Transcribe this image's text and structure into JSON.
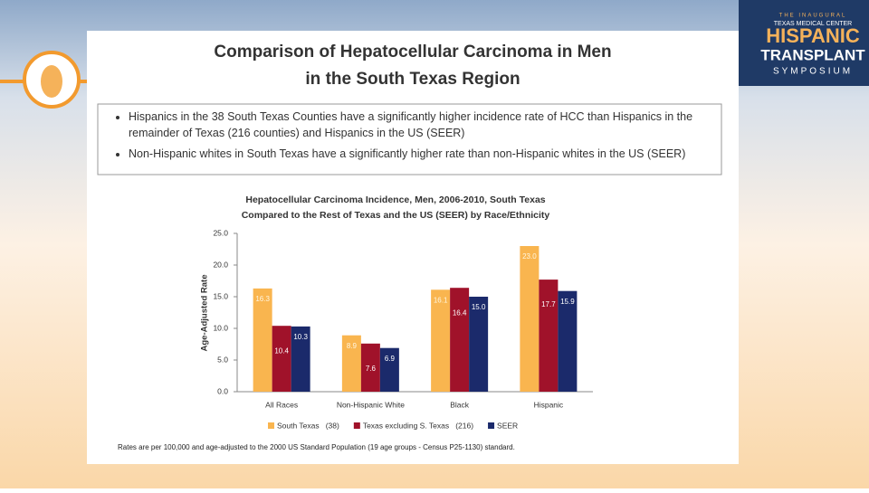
{
  "slide": {
    "title": [
      "Comparison of Hepatocellular Carcinoma in Men",
      "in the South Texas Region"
    ],
    "bullets": [
      "Hispanics in the 38 South Texas Counties have a significantly higher incidence rate of HCC than Hispanics in the remainder of Texas (216 counties) and Hispanics in the US (SEER)",
      "Non-Hispanic whites in South Texas have a significantly higher rate than non-Hispanic whites in the US (SEER)"
    ],
    "logo": [
      "THE INAUGURAL",
      "TEXAS MEDICAL CENTER",
      "HISPANIC",
      "TRANSPLANT",
      "SYMPOSIUM"
    ],
    "footnote": "Rates are per 100,000 and age-adjusted to the 2000 US Standard Population (19 age groups - Census P25-1130) standard."
  },
  "chart_data": {
    "type": "bar",
    "title": [
      "Hepatocellular Carcinoma Incidence, Men, 2006-2010, South Texas",
      "Compared to the Rest of Texas and the US (SEER) by Race/Ethnicity"
    ],
    "y_label": "Age-Adjusted Rate",
    "categories": [
      "All Races",
      "Non-Hispanic White",
      "Black",
      "Hispanic"
    ],
    "series": [
      {
        "name": "South Texas   (38)",
        "color": "#f9b54f",
        "values": [
          16.3,
          8.9,
          16.1,
          23.0
        ],
        "value_labels": [
          "16.3",
          "8.9",
          "16.1",
          "23.0"
        ]
      },
      {
        "name": "Texas excluding S. Texas   (216)",
        "color": "#a0122a",
        "values": [
          10.4,
          7.6,
          16.4,
          17.7
        ],
        "value_labels": [
          "10.4",
          "7.6",
          "16.4",
          "17.7"
        ]
      },
      {
        "name": "SEER",
        "color": "#1b2a6b",
        "values": [
          10.3,
          6.9,
          15.0,
          15.9
        ],
        "value_labels": [
          "10.3",
          "6.9",
          "15.0",
          "15.9"
        ]
      }
    ],
    "ylim": [
      0,
      25
    ],
    "yticks": [
      {
        "value": 0,
        "label": "0.0"
      },
      {
        "value": 5,
        "label": "5.0"
      },
      {
        "value": 10,
        "label": "10.0"
      },
      {
        "value": 15,
        "label": "15.0"
      },
      {
        "value": 20,
        "label": "20.0"
      },
      {
        "value": 25,
        "label": "25.0"
      }
    ],
    "legend": "bottom"
  }
}
